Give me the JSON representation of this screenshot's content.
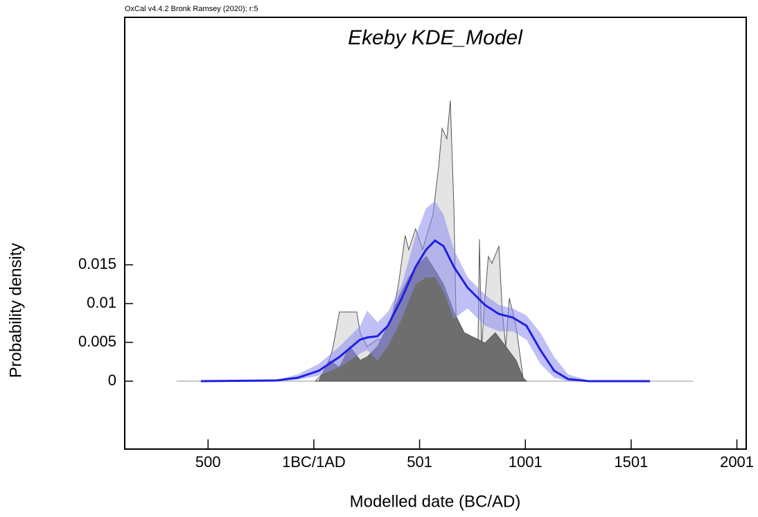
{
  "chart_data": {
    "type": "area",
    "caption": "OxCal v4.4.2 Bronk Ramsey (2020); r:5",
    "title": "Ekeby KDE_Model",
    "xlabel": "Modelled date (BC/AD)",
    "ylabel": "Probability density",
    "xlim": [
      -894,
      2044
    ],
    "ylim": [
      -0.00875,
      0.0469
    ],
    "xticks": [
      {
        "value": -500,
        "label": "500"
      },
      {
        "value": 0,
        "label": "1BC/1AD"
      },
      {
        "value": 500,
        "label": "501"
      },
      {
        "value": 1000,
        "label": "1001"
      },
      {
        "value": 1500,
        "label": "1501"
      },
      {
        "value": 2000,
        "label": "2001"
      }
    ],
    "yticks": [
      0,
      0.005,
      0.01,
      0.015
    ],
    "series": [
      {
        "style": "line",
        "color": "#c8c8c8",
        "x": [
          -649,
          1792
        ],
        "values": [
          0,
          0
        ]
      },
      {
        "style": "fill",
        "color": "#e4e4e4",
        "x": [
          7,
          56,
          88,
          121,
          203,
          219,
          252,
          301,
          350,
          400,
          432,
          449,
          481,
          514,
          563,
          590,
          606,
          629,
          645,
          662,
          678,
          711,
          744,
          776,
          783,
          793,
          809,
          825,
          842,
          875,
          891,
          907,
          924,
          956,
          989
        ],
        "values": [
          0,
          0.00134,
          0.00402,
          0.00893,
          0.00893,
          0.00625,
          0.00446,
          0.00536,
          0.00536,
          0.0125,
          0.01875,
          0.01696,
          0.01964,
          0.01696,
          0.02143,
          0.02768,
          0.03259,
          0.03125,
          0.03616,
          0.02232,
          0.00045,
          0.00018,
          0.00045,
          0.00446,
          0.0183,
          0.00446,
          0.01071,
          0.01607,
          0.01518,
          0.01741,
          0.00893,
          0.00446,
          0.01071,
          0.00714,
          0.00045
        ]
      },
      {
        "style": "fill",
        "color": "#6e6e6e",
        "x": [
          23,
          72,
          121,
          170,
          219,
          252,
          301,
          350,
          400,
          449,
          498,
          531,
          563,
          613,
          662,
          711,
          776,
          809,
          858,
          907,
          956,
          989,
          1005
        ],
        "values": [
          0,
          0.00268,
          0.00179,
          0.00446,
          0.00268,
          0.00313,
          0.00446,
          0.00714,
          0.01071,
          0.01339,
          0.01518,
          0.01607,
          0.01473,
          0.0125,
          0.00893,
          0.00625,
          0.00536,
          0.00491,
          0.00625,
          0.00446,
          0.00268,
          0.00045,
          0
        ]
      },
      {
        "style": "band",
        "color": "#8c8cf0",
        "x": [
          -534,
          -174,
          -75,
          23,
          121,
          219,
          252,
          301,
          350,
          416,
          481,
          531,
          573,
          613,
          662,
          727,
          809,
          875,
          940,
          1005,
          1071,
          1136,
          1202,
          1300,
          1589
        ],
        "values": [
          0,
          0.00018,
          0.00089,
          0.00223,
          0.00446,
          0.00714,
          0.00911,
          0.00759,
          0.00893,
          0.0125,
          0.01875,
          0.02232,
          0.02321,
          0.02143,
          0.01696,
          0.01339,
          0.01116,
          0.00982,
          0.00938,
          0.00848,
          0.00625,
          0.00313,
          0.00089,
          9e-05,
          0
        ],
        "lower": [
          0,
          0,
          0.00018,
          0.00071,
          0.00179,
          0.00357,
          0.00402,
          0.00268,
          0.00446,
          0.00804,
          0.0125,
          0.01339,
          0.01339,
          0.01161,
          0.00804,
          0.00938,
          0.00714,
          0.00643,
          0.00643,
          0.00536,
          0.00223,
          0.00045,
          0,
          0,
          0
        ]
      },
      {
        "style": "line",
        "color": "#1f1fe6",
        "x": [
          -534,
          -174,
          -75,
          23,
          121,
          219,
          252,
          301,
          350,
          416,
          481,
          531,
          573,
          613,
          662,
          727,
          809,
          875,
          940,
          1005,
          1071,
          1136,
          1202,
          1300,
          1589
        ],
        "values": [
          0,
          0.0001,
          0.00045,
          0.00134,
          0.00313,
          0.00536,
          0.00563,
          0.0058,
          0.00714,
          0.01071,
          0.01473,
          0.01696,
          0.01813,
          0.01741,
          0.01473,
          0.01205,
          0.00982,
          0.00866,
          0.00821,
          0.00714,
          0.00402,
          0.00134,
          0.00027,
          0,
          0
        ]
      }
    ]
  }
}
